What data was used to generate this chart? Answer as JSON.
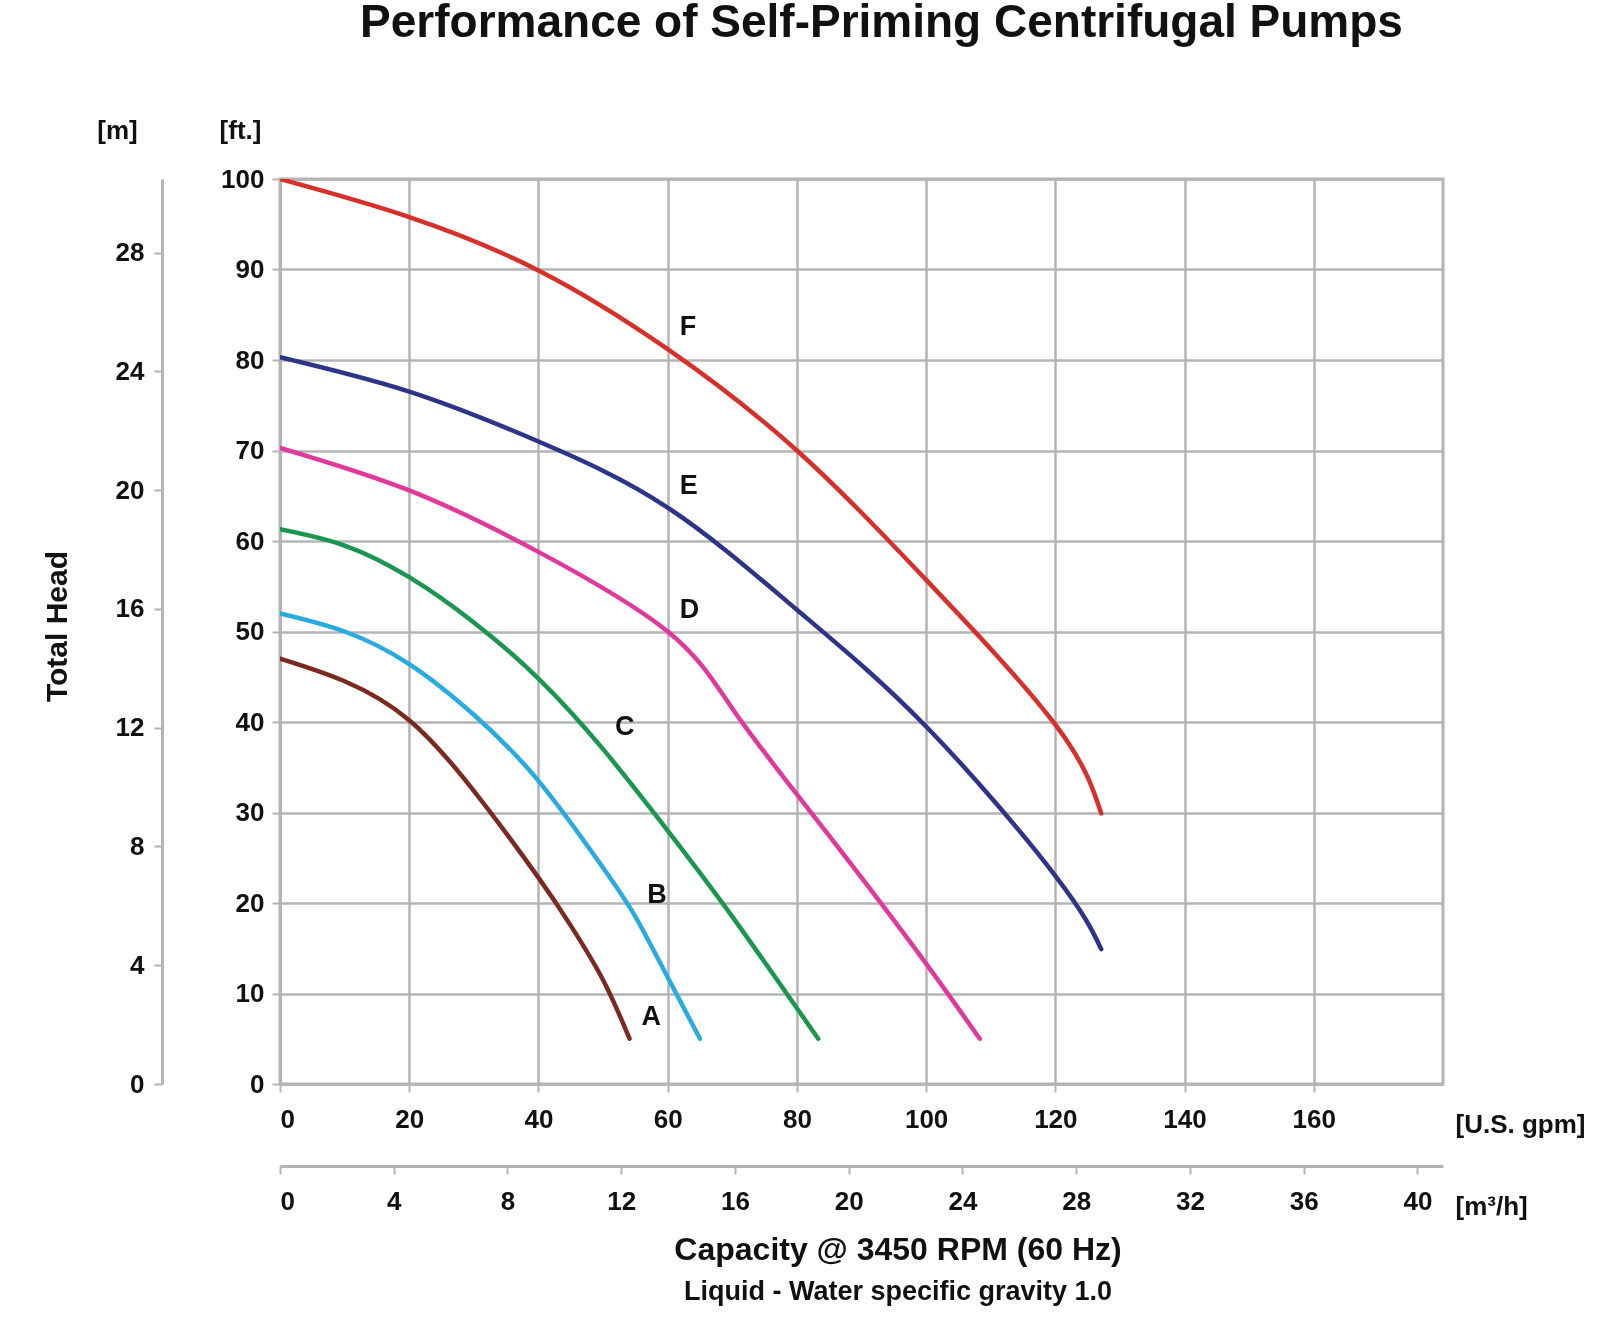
{
  "chart_data": {
    "type": "line",
    "title": "Performance of Self-Priming Centrifugal Pumps",
    "xlabel": "[U.S. gpm]",
    "ylabel": "[ft.]",
    "x2label": "[m³/h]",
    "y2label": "[m]",
    "annotations": [
      "Total Head",
      "Capacity @ 3450 RPM (60 Hz)",
      "Liquid - Water specific gravity 1.0"
    ],
    "xlim": [
      0,
      180
    ],
    "xticks": [
      0,
      20,
      40,
      60,
      80,
      100,
      120,
      140,
      160
    ],
    "ylim": [
      0,
      100
    ],
    "yticks": [
      0,
      10,
      20,
      30,
      40,
      50,
      60,
      70,
      80,
      90,
      100
    ],
    "x2lim": [
      0,
      40.9
    ],
    "x2ticks": [
      0,
      4,
      8,
      12,
      16,
      20,
      24,
      28,
      32,
      36,
      40
    ],
    "y2lim": [
      0,
      30.48
    ],
    "y2ticks": [
      0,
      4,
      8,
      12,
      16,
      20,
      24,
      28
    ],
    "grid": true,
    "legend": false,
    "marker": "none",
    "line_style": "solid",
    "series": [
      {
        "name": "A",
        "color": "#7b2a22",
        "x": [
          0,
          10,
          20,
          30,
          40,
          45,
          50,
          54.1
        ],
        "values": [
          47,
          44.5,
          40.2,
          32.4,
          22.8,
          17.5,
          11.5,
          5
        ]
      },
      {
        "name": "B",
        "color": "#29abe2",
        "x": [
          0,
          10,
          20,
          30,
          40,
          50,
          55,
          60,
          65
        ],
        "values": [
          52,
          50,
          46.4,
          40.8,
          33.5,
          23.9,
          18.5,
          11.8,
          5
        ]
      },
      {
        "name": "C",
        "color": "#1a9650",
        "x": [
          0,
          10,
          20,
          30,
          40,
          50,
          60,
          70,
          83.3
        ],
        "values": [
          61.3,
          59.5,
          56,
          51,
          44.8,
          37,
          28,
          18.5,
          5
        ]
      },
      {
        "name": "D",
        "color": "#e0399b",
        "x": [
          0,
          20,
          40,
          60,
          70,
          80,
          90,
          100,
          108.3
        ],
        "values": [
          70.3,
          65.6,
          58.8,
          50,
          41.5,
          32,
          22.8,
          13.3,
          5
        ]
      },
      {
        "name": "E",
        "color": "#2e3487",
        "x": [
          0,
          20,
          40,
          60,
          80,
          100,
          120,
          127.1
        ],
        "values": [
          80.3,
          76.5,
          71,
          63.7,
          52.4,
          39.5,
          23,
          14.9
        ]
      },
      {
        "name": "F",
        "color": "#d7302a",
        "x": [
          0,
          20,
          40,
          60,
          80,
          100,
          120,
          127.1
        ],
        "values": [
          100,
          95.8,
          89.9,
          81.2,
          70,
          55.7,
          39.7,
          29.9
        ]
      }
    ]
  }
}
